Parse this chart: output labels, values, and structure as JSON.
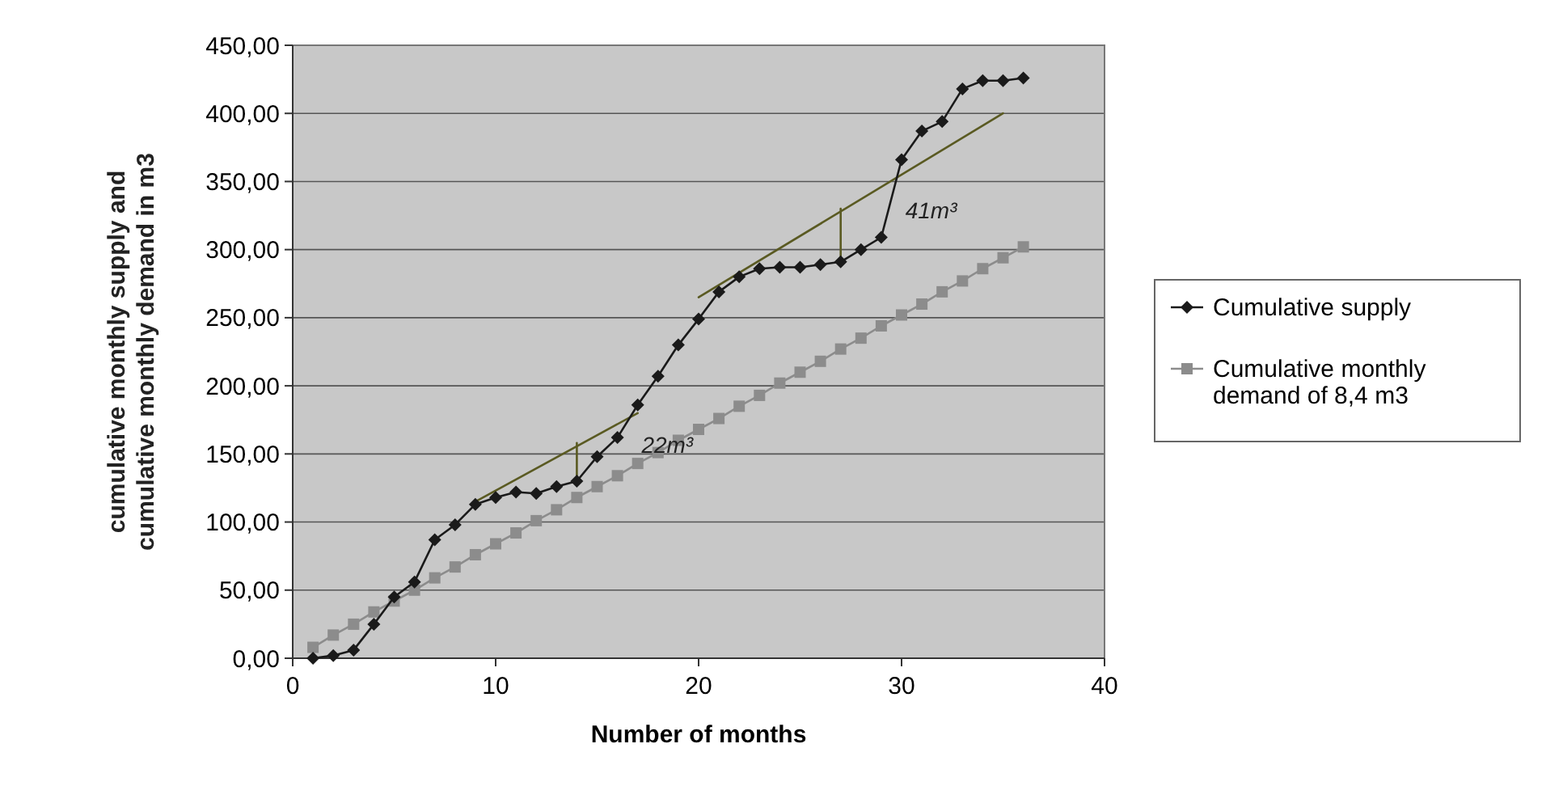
{
  "chart_data": {
    "type": "line",
    "xlabel": "Number of months",
    "ylabel": "cumulative monthly supply and cumulative monthly demand in m3",
    "xlim": [
      0,
      40
    ],
    "xticks": [
      0,
      10,
      20,
      30,
      40
    ],
    "ylim": [
      0,
      450
    ],
    "yticks": [
      {
        "value": 0,
        "label": "0,00"
      },
      {
        "value": 50,
        "label": "50,00"
      },
      {
        "value": 100,
        "label": "100,00"
      },
      {
        "value": 150,
        "label": "150,00"
      },
      {
        "value": 200,
        "label": "200,00"
      },
      {
        "value": 250,
        "label": "250,00"
      },
      {
        "value": 300,
        "label": "300,00"
      },
      {
        "value": 350,
        "label": "350,00"
      },
      {
        "value": 400,
        "label": "400,00"
      },
      {
        "value": 450,
        "label": "450,00"
      }
    ],
    "grid": "y",
    "legend": "right",
    "series": [
      {
        "name": "Cumulative supply",
        "color": "#1a1a1a",
        "marker": "diamond",
        "x": [
          1,
          2,
          3,
          4,
          5,
          6,
          7,
          8,
          9,
          10,
          11,
          12,
          13,
          14,
          15,
          16,
          17,
          18,
          19,
          20,
          21,
          22,
          23,
          24,
          25,
          26,
          27,
          28,
          29,
          30,
          31,
          32,
          33,
          34,
          35,
          36
        ],
        "values": [
          0,
          2,
          6,
          25,
          45,
          56,
          87,
          98,
          113,
          118,
          122,
          121,
          126,
          130,
          148,
          162,
          186,
          207,
          230,
          249,
          269,
          280,
          286,
          287,
          287,
          289,
          291,
          300,
          309,
          366,
          387,
          394,
          418,
          424,
          424,
          426
        ]
      },
      {
        "name": "Cumulative monthly demand of 8,4 m3",
        "color": "#8c8c8c",
        "marker": "square",
        "x": [
          1,
          2,
          3,
          4,
          5,
          6,
          7,
          8,
          9,
          10,
          11,
          12,
          13,
          14,
          15,
          16,
          17,
          18,
          19,
          20,
          21,
          22,
          23,
          24,
          25,
          26,
          27,
          28,
          29,
          30,
          31,
          32,
          33,
          34,
          35,
          36
        ],
        "values": [
          8,
          17,
          25,
          34,
          42,
          50,
          59,
          67,
          76,
          84,
          92,
          101,
          109,
          118,
          126,
          134,
          143,
          151,
          160,
          168,
          176,
          185,
          193,
          202,
          210,
          218,
          227,
          235,
          244,
          252,
          260,
          269,
          277,
          286,
          294,
          302
        ]
      },
      {
        "color": "#5a5a22",
        "marker": "none",
        "x": [
          9,
          17
        ],
        "values": [
          115,
          180
        ]
      },
      {
        "color": "#5a5a22",
        "marker": "none",
        "x": [
          14,
          14
        ],
        "values": [
          130,
          158
        ]
      },
      {
        "color": "#5a5a22",
        "marker": "none",
        "x": [
          20,
          35
        ],
        "values": [
          265,
          400
        ]
      },
      {
        "color": "#5a5a22",
        "marker": "none",
        "x": [
          27,
          27
        ],
        "values": [
          291,
          330
        ]
      }
    ],
    "annotations": [
      {
        "text": "22m³",
        "x": 14,
        "y": 158
      },
      {
        "text": "41m³",
        "x": 27,
        "y": 330
      }
    ]
  }
}
